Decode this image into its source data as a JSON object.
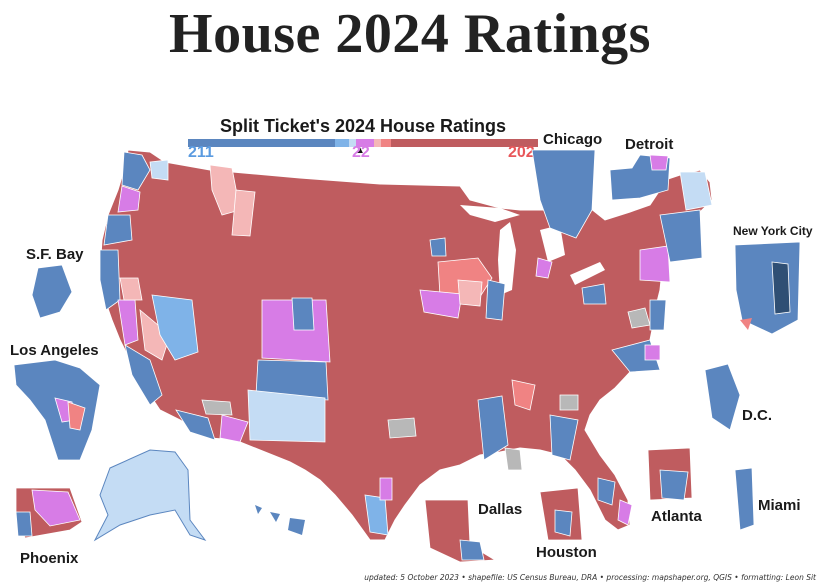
{
  "title": "House 2024 Ratings",
  "legend": {
    "title": "Split Ticket's 2024 House Ratings",
    "dem_count": "211",
    "tossup_count": "22",
    "rep_count": "202",
    "colors": {
      "safe_d": "#5b86bf",
      "likely_d": "#7fb3e8",
      "lean_d": "#c4dcf4",
      "tossup": "#d77ce6",
      "lean_r": "#f4b7b7",
      "likely_r": "#f08383",
      "safe_r": "#bf5c5f",
      "no_data": "#b8b8b8"
    }
  },
  "insets": {
    "sf_bay": "S.F. Bay",
    "los_angeles": "Los Angeles",
    "phoenix": "Phoenix",
    "chicago": "Chicago",
    "detroit": "Detroit",
    "new_york_city": "New York City",
    "dc": "D.C.",
    "dallas": "Dallas",
    "houston": "Houston",
    "atlanta": "Atlanta",
    "miami": "Miami"
  },
  "credits": "updated: 5 October 2023 • shapefile: US Census Bureau, DRA • processing: mapshaper.org, QGIS • formatting: Leon Sit"
}
